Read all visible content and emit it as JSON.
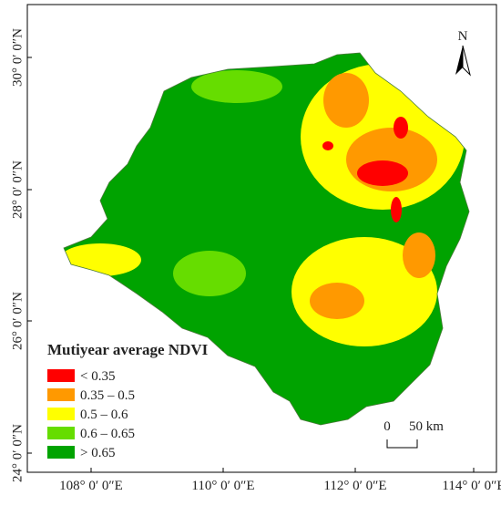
{
  "graticule": {
    "latitudes": [
      "30° 0′ 0″N",
      "28° 0′ 0″N",
      "26° 0′ 0″N",
      "24° 0′ 0″N"
    ],
    "longitudes": [
      "108° 0′ 0″E",
      "110° 0′ 0″E",
      "112° 0′ 0″E",
      "114° 0′ 0″E"
    ]
  },
  "legend": {
    "title": "Mutiyear average NDVI",
    "items": [
      {
        "label": "< 0.35",
        "color": "#ff0000"
      },
      {
        "label": "0.35 – 0.5",
        "color": "#ff9900"
      },
      {
        "label": "0.5 – 0.6",
        "color": "#ffff00"
      },
      {
        "label": "0.6 – 0.65",
        "color": "#66dd00"
      },
      {
        "label": "> 0.65",
        "color": "#00a300"
      }
    ]
  },
  "north_arrow": {
    "label": "N"
  },
  "scale_bar": {
    "start": "0",
    "end": "50 km"
  }
}
